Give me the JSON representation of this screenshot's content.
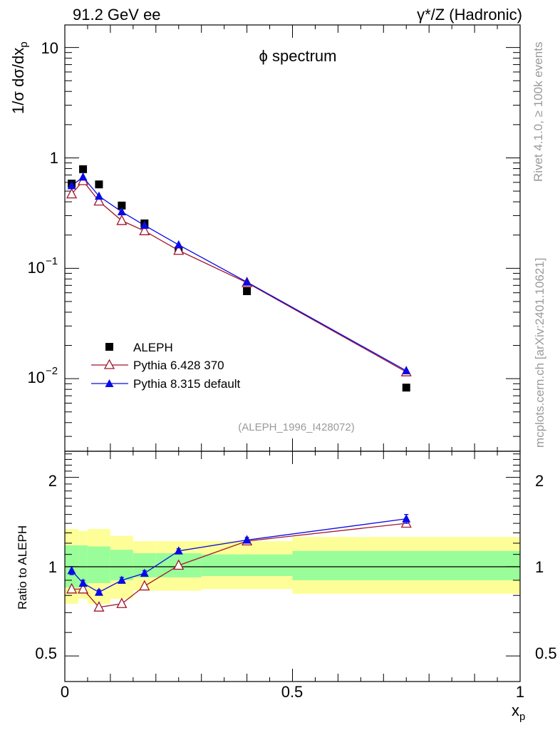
{
  "header": {
    "left_title": "91.2 GeV ee",
    "right_title": "γ*/Z (Hadronic)",
    "plot_title": "ϕ spectrum",
    "analysis_tag": "(ALEPH_1996_I428072)",
    "side_text_top": "Rivet 4.1.0, ≥ 100k events",
    "side_text_bottom": "mcplots.cern.ch [arXiv:2401.10621]"
  },
  "chart_data": [
    {
      "type": "scatter",
      "panel": "main",
      "title": "ϕ spectrum",
      "xlabel": "x_p",
      "ylabel": "1/σ dσ/dx_p",
      "xlim": [
        0,
        1
      ],
      "ylim": [
        0.0022,
        16
      ],
      "yscale": "log",
      "ytick_labels": {
        "t10": "10",
        "t1": "1",
        "tm1_base": "10",
        "tm1_exp": "−1",
        "tm2_base": "10",
        "tm2_exp": "−2"
      },
      "legend_position": "lower-left",
      "series": [
        {
          "name": "ALEPH",
          "marker": "filled-square",
          "color": "#000000",
          "x": [
            0.015,
            0.04,
            0.075,
            0.125,
            0.175,
            0.25,
            0.4,
            0.75
          ],
          "y": [
            0.585,
            0.79,
            0.575,
            0.37,
            0.255,
            0.145,
            0.062,
            0.0083
          ]
        },
        {
          "name": "Pythia 6.428 370",
          "marker": "open-triangle",
          "color": "#a0162b",
          "x": [
            0.015,
            0.04,
            0.075,
            0.125,
            0.175,
            0.25,
            0.4,
            0.75
          ],
          "y": [
            0.47,
            0.62,
            0.405,
            0.27,
            0.218,
            0.145,
            0.074,
            0.0115
          ]
        },
        {
          "name": "Pythia 8.315 default",
          "marker": "filled-triangle",
          "color": "#0a0ae6",
          "x": [
            0.015,
            0.04,
            0.075,
            0.125,
            0.175,
            0.25,
            0.4,
            0.75
          ],
          "y": [
            0.56,
            0.67,
            0.45,
            0.325,
            0.245,
            0.163,
            0.075,
            0.0118
          ]
        }
      ]
    },
    {
      "type": "line",
      "panel": "ratio",
      "xlabel": "x_p",
      "ylabel": "Ratio to ALEPH",
      "xlim": [
        0,
        1
      ],
      "ylim": [
        0.41,
        2.45
      ],
      "yscale": "log",
      "yticks": [
        0.5,
        1,
        2
      ],
      "ytick_labels": [
        "0.5",
        "1",
        "2"
      ],
      "xticks": [
        0,
        0.5,
        1
      ],
      "xtick_labels": [
        "0",
        "0.5",
        "1"
      ],
      "bands": [
        {
          "xlo": 0.0,
          "xhi": 0.03,
          "inner": [
            0.85,
            1.18
          ],
          "outer": [
            0.75,
            1.34
          ]
        },
        {
          "xlo": 0.03,
          "xhi": 0.05,
          "inner": [
            0.85,
            1.18
          ],
          "outer": [
            0.78,
            1.32
          ]
        },
        {
          "xlo": 0.05,
          "xhi": 0.1,
          "inner": [
            0.88,
            1.17
          ],
          "outer": [
            0.75,
            1.34
          ]
        },
        {
          "xlo": 0.1,
          "xhi": 0.15,
          "inner": [
            0.9,
            1.14
          ],
          "outer": [
            0.78,
            1.27
          ]
        },
        {
          "xlo": 0.15,
          "xhi": 0.2,
          "inner": [
            0.92,
            1.11
          ],
          "outer": [
            0.83,
            1.22
          ]
        },
        {
          "xlo": 0.2,
          "xhi": 0.3,
          "inner": [
            0.92,
            1.11
          ],
          "outer": [
            0.83,
            1.22
          ]
        },
        {
          "xlo": 0.3,
          "xhi": 0.5,
          "inner": [
            0.93,
            1.1
          ],
          "outer": [
            0.84,
            1.22
          ]
        },
        {
          "xlo": 0.5,
          "xhi": 1.0,
          "inner": [
            0.9,
            1.13
          ],
          "outer": [
            0.81,
            1.26
          ]
        }
      ],
      "series": [
        {
          "name": "Pythia 6.428 370",
          "marker": "open-triangle",
          "color": "#a0162b",
          "x": [
            0.015,
            0.04,
            0.075,
            0.125,
            0.175,
            0.25,
            0.4,
            0.75
          ],
          "y": [
            0.84,
            0.84,
            0.73,
            0.75,
            0.86,
            1.01,
            1.22,
            1.4
          ],
          "yerr": [
            0,
            0,
            0,
            0,
            0,
            0,
            0.015,
            0.03
          ]
        },
        {
          "name": "Pythia 8.315 default",
          "marker": "filled-triangle",
          "color": "#0a0ae6",
          "x": [
            0.015,
            0.04,
            0.075,
            0.125,
            0.175,
            0.25,
            0.4,
            0.75
          ],
          "y": [
            0.97,
            0.88,
            0.82,
            0.9,
            0.95,
            1.13,
            1.23,
            1.45
          ],
          "yerr": [
            0.03,
            0.02,
            0.015,
            0.02,
            0.02,
            0.02,
            0.025,
            0.05
          ]
        }
      ]
    }
  ]
}
